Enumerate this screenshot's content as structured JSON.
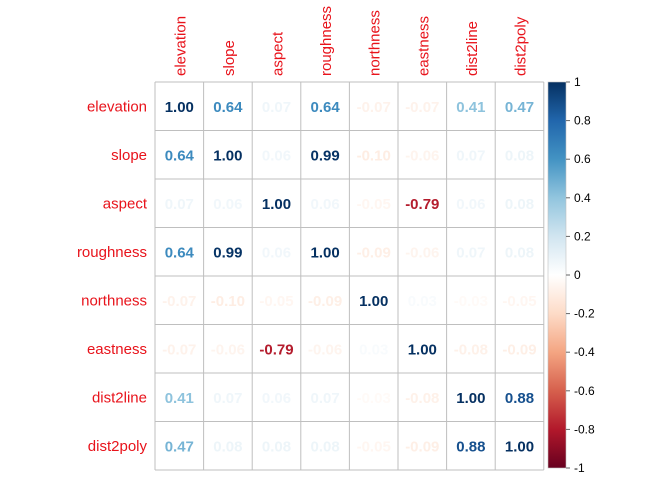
{
  "chart_data": {
    "type": "heatmap",
    "variables": [
      "elevation",
      "slope",
      "aspect",
      "roughness",
      "northness",
      "eastness",
      "dist2line",
      "dist2poly"
    ],
    "matrix": [
      [
        1.0,
        0.64,
        0.07,
        0.64,
        -0.07,
        -0.07,
        0.41,
        0.47
      ],
      [
        0.64,
        1.0,
        0.06,
        0.99,
        -0.1,
        -0.06,
        0.07,
        0.08
      ],
      [
        0.07,
        0.06,
        1.0,
        0.06,
        -0.05,
        -0.79,
        0.06,
        0.08
      ],
      [
        0.64,
        0.99,
        0.06,
        1.0,
        -0.09,
        -0.06,
        0.07,
        0.08
      ],
      [
        -0.07,
        -0.1,
        -0.05,
        -0.09,
        1.0,
        0.03,
        -0.03,
        -0.05
      ],
      [
        -0.07,
        -0.06,
        -0.79,
        -0.06,
        0.03,
        1.0,
        -0.08,
        -0.09
      ],
      [
        0.41,
        0.07,
        0.06,
        0.07,
        -0.03,
        -0.08,
        1.0,
        0.88
      ],
      [
        0.47,
        0.08,
        0.08,
        0.08,
        -0.05,
        -0.09,
        0.88,
        1.0
      ]
    ],
    "color_scale": {
      "range": [
        -1,
        1
      ],
      "ticks": [
        "1",
        "0.8",
        "0.6",
        "0.4",
        "0.2",
        "0",
        "-0.2",
        "-0.4",
        "-0.6",
        "-0.8",
        "-1"
      ],
      "negative_color": "#67001f",
      "mid_color": "#ffffff",
      "positive_color": "#053061"
    },
    "label_color": "#e8131b",
    "grid_color": "#bfbfbf"
  }
}
